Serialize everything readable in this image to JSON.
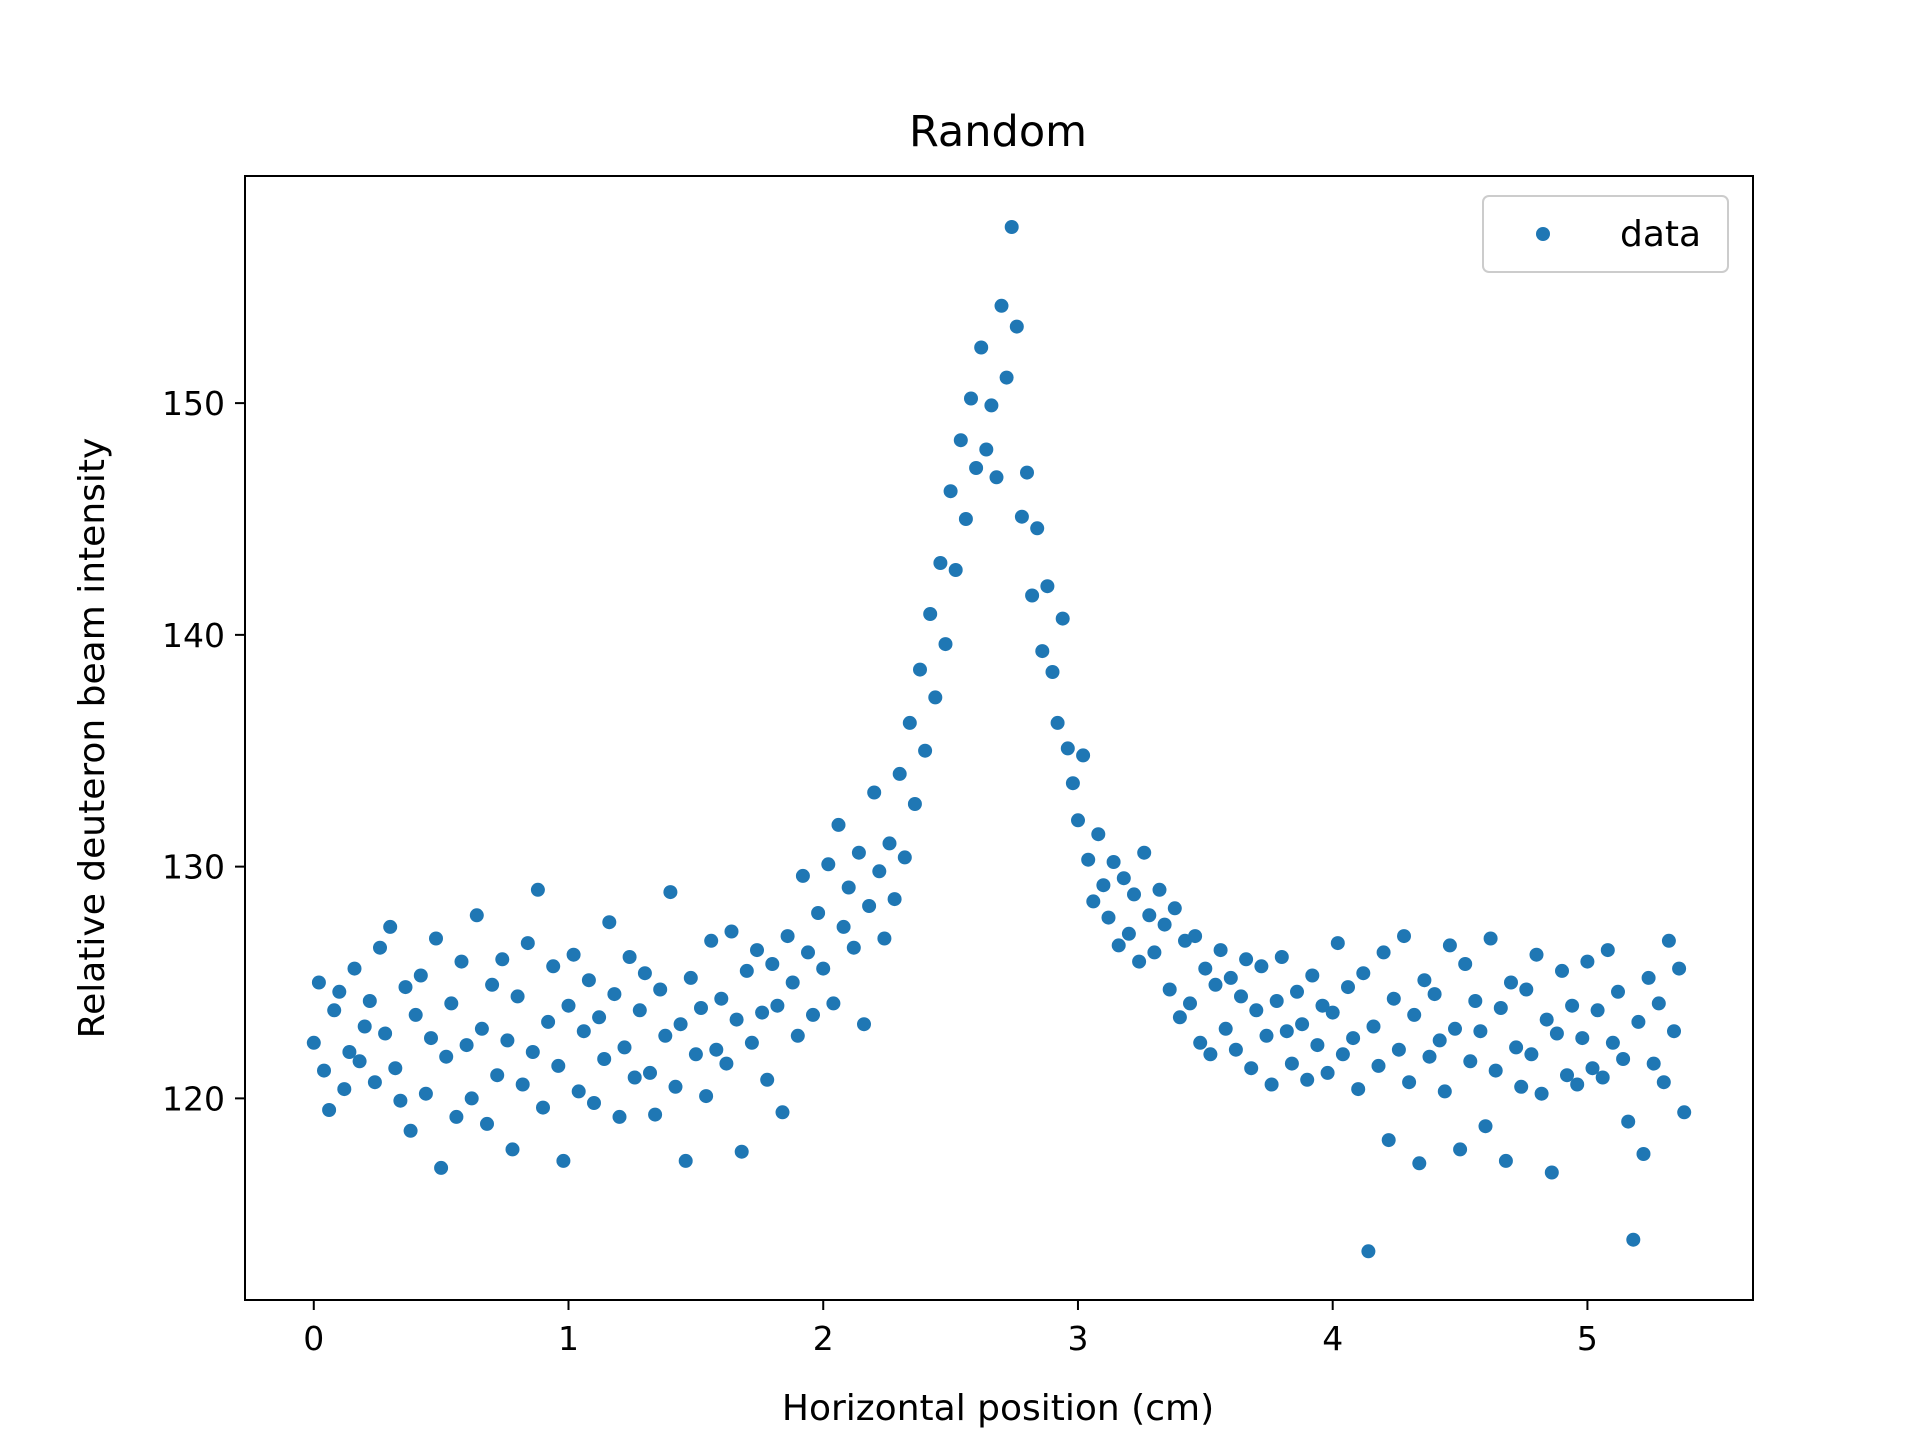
{
  "chart_data": {
    "type": "scatter",
    "title": "Random",
    "xlabel": "Horizontal position (cm)",
    "ylabel": "Relative deuteron beam intensity",
    "xlim": [
      -0.27,
      5.65
    ],
    "ylim": [
      111.3,
      159.8
    ],
    "xticks": [
      0,
      1,
      2,
      3,
      4,
      5
    ],
    "yticks": [
      120,
      130,
      140,
      150
    ],
    "xtick_labels": [
      "0",
      "1",
      "2",
      "3",
      "4",
      "5"
    ],
    "ytick_labels": [
      "120",
      "130",
      "140",
      "150"
    ],
    "legend": {
      "position": "top-right",
      "entries": [
        "data"
      ]
    },
    "grid": false,
    "color": "#1f77b4",
    "series": [
      {
        "name": "data",
        "points": [
          [
            0.0,
            122.4
          ],
          [
            0.02,
            125.0
          ],
          [
            0.04,
            121.2
          ],
          [
            0.06,
            119.5
          ],
          [
            0.08,
            123.8
          ],
          [
            0.1,
            124.6
          ],
          [
            0.12,
            120.4
          ],
          [
            0.14,
            122.0
          ],
          [
            0.16,
            125.6
          ],
          [
            0.18,
            121.6
          ],
          [
            0.2,
            123.1
          ],
          [
            0.22,
            124.2
          ],
          [
            0.24,
            120.7
          ],
          [
            0.26,
            126.5
          ],
          [
            0.28,
            122.8
          ],
          [
            0.3,
            127.4
          ],
          [
            0.32,
            121.3
          ],
          [
            0.34,
            119.9
          ],
          [
            0.36,
            124.8
          ],
          [
            0.38,
            118.6
          ],
          [
            0.4,
            123.6
          ],
          [
            0.42,
            125.3
          ],
          [
            0.44,
            120.2
          ],
          [
            0.46,
            122.6
          ],
          [
            0.48,
            126.9
          ],
          [
            0.5,
            117.0
          ],
          [
            0.52,
            121.8
          ],
          [
            0.54,
            124.1
          ],
          [
            0.56,
            119.2
          ],
          [
            0.58,
            125.9
          ],
          [
            0.6,
            122.3
          ],
          [
            0.62,
            120.0
          ],
          [
            0.64,
            127.9
          ],
          [
            0.66,
            123.0
          ],
          [
            0.68,
            118.9
          ],
          [
            0.7,
            124.9
          ],
          [
            0.72,
            121.0
          ],
          [
            0.74,
            126.0
          ],
          [
            0.76,
            122.5
          ],
          [
            0.78,
            117.8
          ],
          [
            0.8,
            124.4
          ],
          [
            0.82,
            120.6
          ],
          [
            0.84,
            126.7
          ],
          [
            0.86,
            122.0
          ],
          [
            0.88,
            129.0
          ],
          [
            0.9,
            119.6
          ],
          [
            0.92,
            123.3
          ],
          [
            0.94,
            125.7
          ],
          [
            0.96,
            121.4
          ],
          [
            0.98,
            117.3
          ],
          [
            1.0,
            124.0
          ],
          [
            1.02,
            126.2
          ],
          [
            1.04,
            120.3
          ],
          [
            1.06,
            122.9
          ],
          [
            1.08,
            125.1
          ],
          [
            1.1,
            119.8
          ],
          [
            1.12,
            123.5
          ],
          [
            1.14,
            121.7
          ],
          [
            1.16,
            127.6
          ],
          [
            1.18,
            124.5
          ],
          [
            1.2,
            119.2
          ],
          [
            1.22,
            122.2
          ],
          [
            1.24,
            126.1
          ],
          [
            1.26,
            120.9
          ],
          [
            1.28,
            123.8
          ],
          [
            1.3,
            125.4
          ],
          [
            1.32,
            121.1
          ],
          [
            1.34,
            119.3
          ],
          [
            1.36,
            124.7
          ],
          [
            1.38,
            122.7
          ],
          [
            1.4,
            128.9
          ],
          [
            1.42,
            120.5
          ],
          [
            1.44,
            123.2
          ],
          [
            1.46,
            117.3
          ],
          [
            1.48,
            125.2
          ],
          [
            1.5,
            121.9
          ],
          [
            1.52,
            123.9
          ],
          [
            1.54,
            120.1
          ],
          [
            1.56,
            126.8
          ],
          [
            1.58,
            122.1
          ],
          [
            1.6,
            124.3
          ],
          [
            1.62,
            121.5
          ],
          [
            1.64,
            127.2
          ],
          [
            1.66,
            123.4
          ],
          [
            1.68,
            117.7
          ],
          [
            1.7,
            125.5
          ],
          [
            1.72,
            122.4
          ],
          [
            1.74,
            126.4
          ],
          [
            1.76,
            123.7
          ],
          [
            1.78,
            120.8
          ],
          [
            1.8,
            125.8
          ],
          [
            1.82,
            124.0
          ],
          [
            1.84,
            119.4
          ],
          [
            1.86,
            127.0
          ],
          [
            1.88,
            125.0
          ],
          [
            1.9,
            122.7
          ],
          [
            1.92,
            129.6
          ],
          [
            1.94,
            126.3
          ],
          [
            1.96,
            123.6
          ],
          [
            1.98,
            128.0
          ],
          [
            2.0,
            125.6
          ],
          [
            2.02,
            130.1
          ],
          [
            2.04,
            124.1
          ],
          [
            2.06,
            131.8
          ],
          [
            2.08,
            127.4
          ],
          [
            2.1,
            129.1
          ],
          [
            2.12,
            126.5
          ],
          [
            2.14,
            130.6
          ],
          [
            2.16,
            123.2
          ],
          [
            2.18,
            128.3
          ],
          [
            2.2,
            133.2
          ],
          [
            2.22,
            129.8
          ],
          [
            2.24,
            126.9
          ],
          [
            2.26,
            131.0
          ],
          [
            2.28,
            128.6
          ],
          [
            2.3,
            134.0
          ],
          [
            2.32,
            130.4
          ],
          [
            2.34,
            136.2
          ],
          [
            2.36,
            132.7
          ],
          [
            2.38,
            138.5
          ],
          [
            2.4,
            135.0
          ],
          [
            2.42,
            140.9
          ],
          [
            2.44,
            137.3
          ],
          [
            2.46,
            143.1
          ],
          [
            2.48,
            139.6
          ],
          [
            2.5,
            146.2
          ],
          [
            2.52,
            142.8
          ],
          [
            2.54,
            148.4
          ],
          [
            2.56,
            145.0
          ],
          [
            2.58,
            150.2
          ],
          [
            2.6,
            147.2
          ],
          [
            2.62,
            152.4
          ],
          [
            2.64,
            148.0
          ],
          [
            2.66,
            149.9
          ],
          [
            2.68,
            146.8
          ],
          [
            2.7,
            154.2
          ],
          [
            2.72,
            151.1
          ],
          [
            2.74,
            157.6
          ],
          [
            2.76,
            153.3
          ],
          [
            2.78,
            145.1
          ],
          [
            2.8,
            147.0
          ],
          [
            2.82,
            141.7
          ],
          [
            2.84,
            144.6
          ],
          [
            2.86,
            139.3
          ],
          [
            2.88,
            142.1
          ],
          [
            2.9,
            138.4
          ],
          [
            2.92,
            136.2
          ],
          [
            2.94,
            140.7
          ],
          [
            2.96,
            135.1
          ],
          [
            2.98,
            133.6
          ],
          [
            3.0,
            132.0
          ],
          [
            3.02,
            134.8
          ],
          [
            3.04,
            130.3
          ],
          [
            3.06,
            128.5
          ],
          [
            3.08,
            131.4
          ],
          [
            3.1,
            129.2
          ],
          [
            3.12,
            127.8
          ],
          [
            3.14,
            130.2
          ],
          [
            3.16,
            126.6
          ],
          [
            3.18,
            129.5
          ],
          [
            3.2,
            127.1
          ],
          [
            3.22,
            128.8
          ],
          [
            3.24,
            125.9
          ],
          [
            3.26,
            130.6
          ],
          [
            3.28,
            127.9
          ],
          [
            3.3,
            126.3
          ],
          [
            3.32,
            129.0
          ],
          [
            3.34,
            127.5
          ],
          [
            3.36,
            124.7
          ],
          [
            3.38,
            128.2
          ],
          [
            3.4,
            123.5
          ],
          [
            3.42,
            126.8
          ],
          [
            3.44,
            124.1
          ],
          [
            3.46,
            127.0
          ],
          [
            3.48,
            122.4
          ],
          [
            3.5,
            125.6
          ],
          [
            3.52,
            121.9
          ],
          [
            3.54,
            124.9
          ],
          [
            3.56,
            126.4
          ],
          [
            3.58,
            123.0
          ],
          [
            3.6,
            125.2
          ],
          [
            3.62,
            122.1
          ],
          [
            3.64,
            124.4
          ],
          [
            3.66,
            126.0
          ],
          [
            3.68,
            121.3
          ],
          [
            3.7,
            123.8
          ],
          [
            3.72,
            125.7
          ],
          [
            3.74,
            122.7
          ],
          [
            3.76,
            120.6
          ],
          [
            3.78,
            124.2
          ],
          [
            3.8,
            126.1
          ],
          [
            3.82,
            122.9
          ],
          [
            3.84,
            121.5
          ],
          [
            3.86,
            124.6
          ],
          [
            3.88,
            123.2
          ],
          [
            3.9,
            120.8
          ],
          [
            3.92,
            125.3
          ],
          [
            3.94,
            122.3
          ],
          [
            3.96,
            124.0
          ],
          [
            3.98,
            121.1
          ],
          [
            4.0,
            123.7
          ],
          [
            4.02,
            126.7
          ],
          [
            4.04,
            121.9
          ],
          [
            4.06,
            124.8
          ],
          [
            4.08,
            122.6
          ],
          [
            4.1,
            120.4
          ],
          [
            4.12,
            125.4
          ],
          [
            4.14,
            113.4
          ],
          [
            4.16,
            123.1
          ],
          [
            4.18,
            121.4
          ],
          [
            4.2,
            126.3
          ],
          [
            4.22,
            118.2
          ],
          [
            4.24,
            124.3
          ],
          [
            4.26,
            122.1
          ],
          [
            4.28,
            127.0
          ],
          [
            4.3,
            120.7
          ],
          [
            4.32,
            123.6
          ],
          [
            4.34,
            117.2
          ],
          [
            4.36,
            125.1
          ],
          [
            4.38,
            121.8
          ],
          [
            4.4,
            124.5
          ],
          [
            4.42,
            122.5
          ],
          [
            4.44,
            120.3
          ],
          [
            4.46,
            126.6
          ],
          [
            4.48,
            123.0
          ],
          [
            4.5,
            117.8
          ],
          [
            4.52,
            125.8
          ],
          [
            4.54,
            121.6
          ],
          [
            4.56,
            124.2
          ],
          [
            4.58,
            122.9
          ],
          [
            4.6,
            118.8
          ],
          [
            4.62,
            126.9
          ],
          [
            4.64,
            121.2
          ],
          [
            4.66,
            123.9
          ],
          [
            4.68,
            117.3
          ],
          [
            4.7,
            125.0
          ],
          [
            4.72,
            122.2
          ],
          [
            4.74,
            120.5
          ],
          [
            4.76,
            124.7
          ],
          [
            4.78,
            121.9
          ],
          [
            4.8,
            126.2
          ],
          [
            4.82,
            120.2
          ],
          [
            4.84,
            123.4
          ],
          [
            4.86,
            116.8
          ],
          [
            4.88,
            122.8
          ],
          [
            4.9,
            125.5
          ],
          [
            4.92,
            121.0
          ],
          [
            4.94,
            124.0
          ],
          [
            4.96,
            120.6
          ],
          [
            4.98,
            122.6
          ],
          [
            5.0,
            125.9
          ],
          [
            5.02,
            121.3
          ],
          [
            5.04,
            123.8
          ],
          [
            5.06,
            120.9
          ],
          [
            5.08,
            126.4
          ],
          [
            5.1,
            122.4
          ],
          [
            5.12,
            124.6
          ],
          [
            5.14,
            121.7
          ],
          [
            5.16,
            119.0
          ],
          [
            5.18,
            113.9
          ],
          [
            5.2,
            123.3
          ],
          [
            5.22,
            117.6
          ],
          [
            5.24,
            125.2
          ],
          [
            5.26,
            121.5
          ],
          [
            5.28,
            124.1
          ],
          [
            5.3,
            120.7
          ],
          [
            5.32,
            126.8
          ],
          [
            5.34,
            122.9
          ],
          [
            5.36,
            125.6
          ],
          [
            5.38,
            119.4
          ]
        ]
      }
    ]
  }
}
